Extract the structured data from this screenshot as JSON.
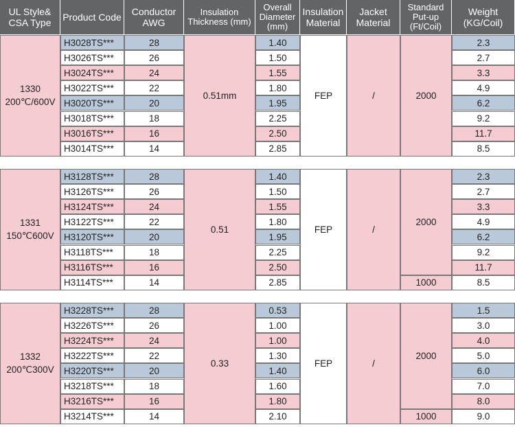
{
  "headers": {
    "style": "UL Style& CSA Type",
    "code": "Product Code",
    "awg": "Conductor AWG",
    "ins_thick": "Insulation Thickness (mm)",
    "od": "Overall Diameter (mm)",
    "ins_mat": "Insulation Material",
    "jacket": "Jacket Material",
    "putup": "Standard Put-up (Ft/Coil)",
    "weight": "Weight (KG/Coil)"
  },
  "awg_values": [
    "28",
    "26",
    "24",
    "22",
    "20",
    "18",
    "16",
    "14"
  ],
  "groups": [
    {
      "style": "1330",
      "rating": "200℃/600V",
      "thickness": "0.51mm",
      "material": "FEP",
      "jacket": "/",
      "putup": "2000",
      "putup_last": "",
      "codes": [
        "H3028TS***",
        "H3026TS***",
        "H3024TS***",
        "H3022TS***",
        "H3020TS***",
        "H3018TS***",
        "H3016TS***",
        "H3014TS***"
      ],
      "diameters": [
        "1.40",
        "1.50",
        "1.55",
        "1.80",
        "1.95",
        "2.25",
        "2.50",
        "2.85"
      ],
      "weights": [
        "2.3",
        "2.7",
        "3.3",
        "4.9",
        "6.2",
        "9.2",
        "11.7",
        "8.5"
      ]
    },
    {
      "style": "1331",
      "rating": "150℃600V",
      "thickness": "0.51",
      "material": "FEP",
      "jacket": "/",
      "putup": "2000",
      "putup_last": "1000",
      "codes": [
        "H3128TS***",
        "H3126TS***",
        "H3124TS***",
        "H3122TS***",
        "H3120TS***",
        "H3118TS***",
        "H3116TS***",
        "H3114TS***"
      ],
      "diameters": [
        "1.40",
        "1.50",
        "1.55",
        "1.80",
        "1.95",
        "2.25",
        "2.50",
        "2.85"
      ],
      "weights": [
        "2.3",
        "2.7",
        "3.3",
        "4.9",
        "6.2",
        "9.2",
        "11.7",
        "8.5"
      ]
    },
    {
      "style": "1332",
      "rating": "200℃300V",
      "thickness": "0.33",
      "material": "FEP",
      "jacket": "/",
      "putup": "2000",
      "putup_last": "1000",
      "codes": [
        "H3228TS***",
        "H3226TS***",
        "H3224TS***",
        "H3222TS***",
        "H3220TS***",
        "H3218TS***",
        "H3216TS***",
        "H3214TS***"
      ],
      "diameters": [
        "0.53",
        "1.00",
        "1.00",
        "1.30",
        "1.40",
        "1.60",
        "1.80",
        "2.10"
      ],
      "weights": [
        "1.5",
        "3.0",
        "4.0",
        "5.0",
        "6.0",
        "7.0",
        "8.0",
        "9.0"
      ]
    }
  ],
  "colors": {
    "header": "#636466",
    "pink": "#f4ccd2",
    "blue": "#b9c9d9",
    "white": "#ffffff"
  }
}
